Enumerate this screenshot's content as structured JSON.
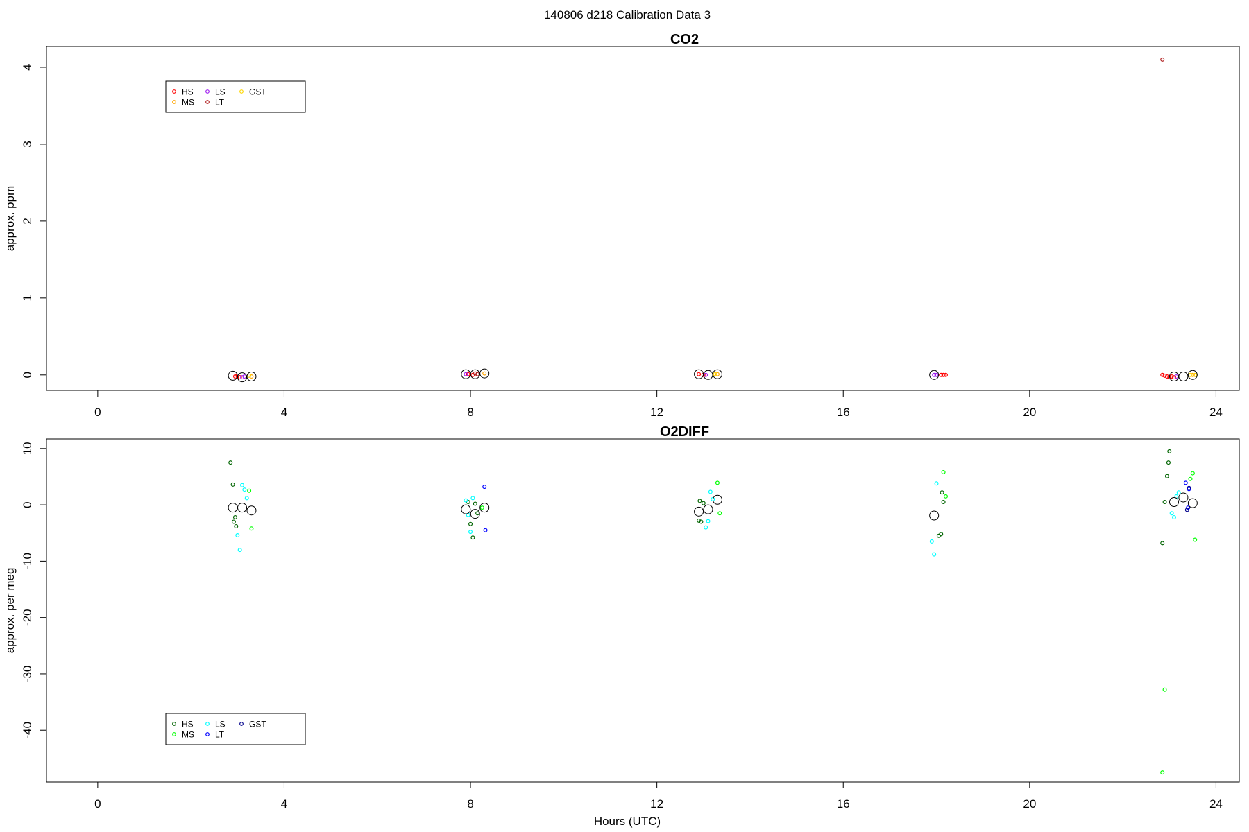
{
  "figure": {
    "title": "140806   d218   Calibration Data 3",
    "xlabel": "Hours (UTC)"
  },
  "chart_data": [
    {
      "type": "scatter",
      "title": "CO2",
      "ylabel": "approx. ppm",
      "xlim": [
        -1.1,
        24.5
      ],
      "ylim": [
        -0.2,
        4.27
      ],
      "xticks": [
        0,
        4,
        8,
        12,
        16,
        20,
        24
      ],
      "yticks": [
        0,
        1,
        2,
        3,
        4
      ],
      "legend": {
        "position": "top-left",
        "entries": [
          {
            "name": "HS",
            "color": "#ff0000"
          },
          {
            "name": "MS",
            "color": "#ffa500"
          },
          {
            "name": "LS",
            "color": "#a020f0"
          },
          {
            "name": "LT",
            "color": "#b22222"
          },
          {
            "name": "GST",
            "color": "#ffd700"
          }
        ]
      },
      "series": [
        {
          "name": "HS",
          "color": "#ff0000",
          "x": [
            2.95,
            3.0,
            3.05,
            7.95,
            8.05,
            12.9,
            13.0,
            18.1,
            18.15,
            18.2,
            22.85,
            22.9,
            22.95,
            23.0,
            23.05,
            23.1
          ],
          "y": [
            -0.02,
            -0.01,
            -0.03,
            0.01,
            0.0,
            0.01,
            0.0,
            0.0,
            0.0,
            0.0,
            0.0,
            -0.01,
            -0.02,
            -0.03,
            -0.02,
            -0.03
          ]
        },
        {
          "name": "MS",
          "color": "#ffa500",
          "x": [
            3.3,
            8.3,
            13.3,
            23.5
          ],
          "y": [
            -0.02,
            0.02,
            0.01,
            0.0
          ]
        },
        {
          "name": "LS",
          "color": "#a020f0",
          "x": [
            3.1,
            3.15,
            7.9,
            13.05,
            17.95,
            18.0,
            23.15
          ],
          "y": [
            -0.03,
            -0.02,
            0.01,
            0.0,
            0.0,
            0.0,
            -0.02
          ]
        },
        {
          "name": "LT",
          "color": "#b22222",
          "x": [
            8.1,
            8.15,
            22.85
          ],
          "y": [
            0.02,
            0.01,
            4.1
          ]
        },
        {
          "name": "GST",
          "color": "#ffd700",
          "x": [
            3.25,
            13.25,
            23.45,
            23.55
          ],
          "y": [
            -0.01,
            0.01,
            0.0,
            0.0
          ]
        }
      ],
      "means": {
        "x": [
          2.9,
          3.1,
          3.3,
          7.9,
          8.1,
          8.3,
          12.9,
          13.1,
          13.3,
          17.95,
          23.1,
          23.3,
          23.5
        ],
        "y": [
          -0.01,
          -0.03,
          -0.02,
          0.01,
          0.01,
          0.02,
          0.01,
          0.0,
          0.01,
          0.0,
          -0.02,
          -0.02,
          0.0
        ]
      }
    },
    {
      "type": "scatter",
      "title": "O2DIFF",
      "ylabel": "approx. per meg",
      "xlim": [
        -1.1,
        24.5
      ],
      "ylim": [
        -49.2,
        11.7
      ],
      "xticks": [
        0,
        4,
        8,
        12,
        16,
        20,
        24
      ],
      "yticks": [
        10,
        0,
        -10,
        -20,
        -30,
        -40
      ],
      "legend": {
        "position": "bottom-left",
        "entries": [
          {
            "name": "HS",
            "color": "#006400"
          },
          {
            "name": "MS",
            "color": "#00ff00"
          },
          {
            "name": "LS",
            "color": "#00ffff"
          },
          {
            "name": "LT",
            "color": "#0000ff"
          },
          {
            "name": "GST",
            "color": "#00008b"
          }
        ]
      },
      "series": [
        {
          "name": "HS",
          "color": "#006400",
          "x": [
            2.85,
            2.9,
            2.92,
            2.95,
            2.97,
            7.95,
            8.0,
            8.05,
            8.1,
            8.15,
            12.9,
            12.92,
            12.95,
            13.0,
            18.05,
            18.1,
            18.12,
            18.15,
            22.85,
            22.9,
            22.95,
            22.98,
            23.0
          ],
          "y": [
            7.5,
            3.6,
            -3.0,
            -2.2,
            -3.8,
            0.5,
            -3.4,
            -5.8,
            0.2,
            -1.5,
            -2.8,
            0.7,
            -3.0,
            0.3,
            -5.5,
            -5.2,
            2.2,
            0.5,
            -6.8,
            0.5,
            5.1,
            7.5,
            9.5
          ]
        },
        {
          "name": "MS",
          "color": "#00ff00",
          "x": [
            3.25,
            3.3,
            8.25,
            13.3,
            13.35,
            18.15,
            18.2,
            23.45,
            23.5,
            23.55,
            22.9,
            22.85
          ],
          "y": [
            2.5,
            -4.2,
            -0.5,
            3.9,
            -1.5,
            5.8,
            1.5,
            4.6,
            5.6,
            -6.2,
            -32.8,
            -47.5
          ]
        },
        {
          "name": "LS",
          "color": "#00ffff",
          "x": [
            3.0,
            3.05,
            3.1,
            3.15,
            3.2,
            7.9,
            7.95,
            8.0,
            8.05,
            13.05,
            13.1,
            13.15,
            13.2,
            17.9,
            17.95,
            18.0,
            23.05,
            23.1,
            23.15,
            23.2
          ],
          "y": [
            -5.4,
            -8.0,
            3.5,
            2.7,
            1.2,
            0.8,
            -1.8,
            -4.8,
            1.2,
            -4.0,
            -2.9,
            2.3,
            1.0,
            -6.5,
            -8.8,
            3.8,
            -1.5,
            -2.2,
            1.5,
            2.2
          ]
        },
        {
          "name": "LT",
          "color": "#0000ff",
          "x": [
            8.3,
            8.32,
            23.35,
            23.4,
            23.42
          ],
          "y": [
            3.2,
            -4.5,
            3.9,
            -0.5,
            2.8
          ]
        },
        {
          "name": "GST",
          "color": "#00008b",
          "x": [
            23.38,
            23.42
          ],
          "y": [
            -0.9,
            3.0
          ]
        }
      ],
      "means": {
        "x": [
          2.9,
          3.1,
          3.3,
          7.9,
          8.1,
          8.3,
          12.9,
          13.1,
          13.3,
          17.95,
          23.1,
          23.3,
          23.5
        ],
        "y": [
          -0.5,
          -0.5,
          -1.0,
          -0.8,
          -1.6,
          -0.5,
          -1.2,
          -0.8,
          0.9,
          -1.9,
          0.5,
          1.3,
          0.3
        ]
      }
    }
  ]
}
